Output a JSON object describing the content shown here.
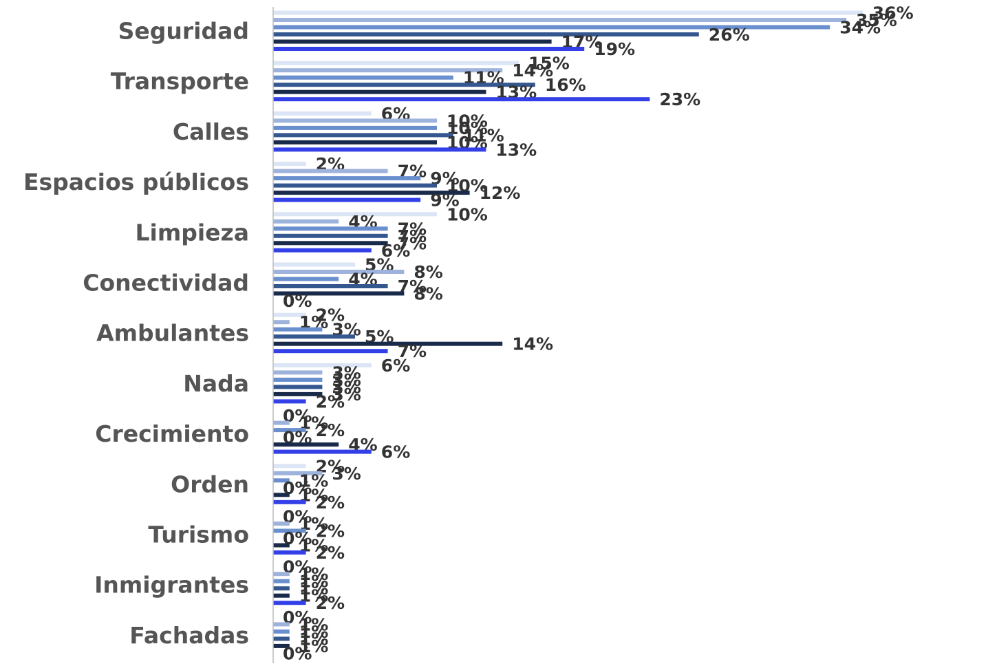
{
  "chart_data": {
    "type": "bar",
    "orientation": "horizontal",
    "categories": [
      "Seguridad",
      "Transporte",
      "Calles",
      "Espacios públicos",
      "Limpieza",
      "Conectividad",
      "Ambulantes",
      "Nada",
      "Crecimiento",
      "Orden",
      "Turismo",
      "Inmigrantes",
      "Fachadas"
    ],
    "series": [
      {
        "color": "#dbe5f5",
        "values": [
          36,
          15,
          6,
          2,
          10,
          5,
          2,
          6,
          0,
          2,
          0,
          0,
          0
        ],
        "value_labels": [
          "36%",
          "15%",
          "6%",
          "2%",
          "10%",
          "5%",
          "2%",
          "6%",
          "0%",
          "2%",
          "0%",
          "0%",
          "0%"
        ]
      },
      {
        "color": "#9db3dc",
        "values": [
          35,
          14,
          10,
          7,
          4,
          8,
          1,
          3,
          1,
          3,
          1,
          1,
          1
        ],
        "value_labels": [
          "35%",
          "14%",
          "10%",
          "7%",
          "4%",
          "8%",
          "1%",
          "3%",
          "1%",
          "3%",
          "1%",
          "1%",
          "1%"
        ]
      },
      {
        "color": "#6a8fce",
        "values": [
          34,
          11,
          10,
          9,
          7,
          4,
          3,
          3,
          2,
          1,
          2,
          1,
          1
        ],
        "value_labels": [
          "34%",
          "11%",
          "10%",
          "9%",
          "7%",
          "4%",
          "3%",
          "3%",
          "2%",
          "1%",
          "2%",
          "1%",
          "1%"
        ]
      },
      {
        "color": "#34578f",
        "values": [
          26,
          16,
          11,
          10,
          7,
          7,
          5,
          3,
          0,
          0,
          0,
          1,
          1
        ],
        "value_labels": [
          "26%",
          "16%",
          "11%",
          "10%",
          "7%",
          "7%",
          "5%",
          "3%",
          "0%",
          "0%",
          "0%",
          "1%",
          "1%"
        ]
      },
      {
        "color": "#1a2a4a",
        "values": [
          17,
          13,
          10,
          12,
          7,
          8,
          14,
          3,
          4,
          1,
          1,
          1,
          1
        ],
        "value_labels": [
          "17%",
          "13%",
          "10%",
          "12%",
          "7%",
          "8%",
          "14%",
          "3%",
          "4%",
          "1%",
          "1%",
          "1%",
          "1%"
        ]
      },
      {
        "color": "#3340e8",
        "values": [
          19,
          23,
          13,
          9,
          6,
          0,
          7,
          2,
          6,
          2,
          2,
          2,
          0
        ],
        "value_labels": [
          "19%",
          "23%",
          "13%",
          "9%",
          "6%",
          "0%",
          "7%",
          "2%",
          "6%",
          "2%",
          "2%",
          "2%",
          "0%"
        ]
      }
    ]
  }
}
